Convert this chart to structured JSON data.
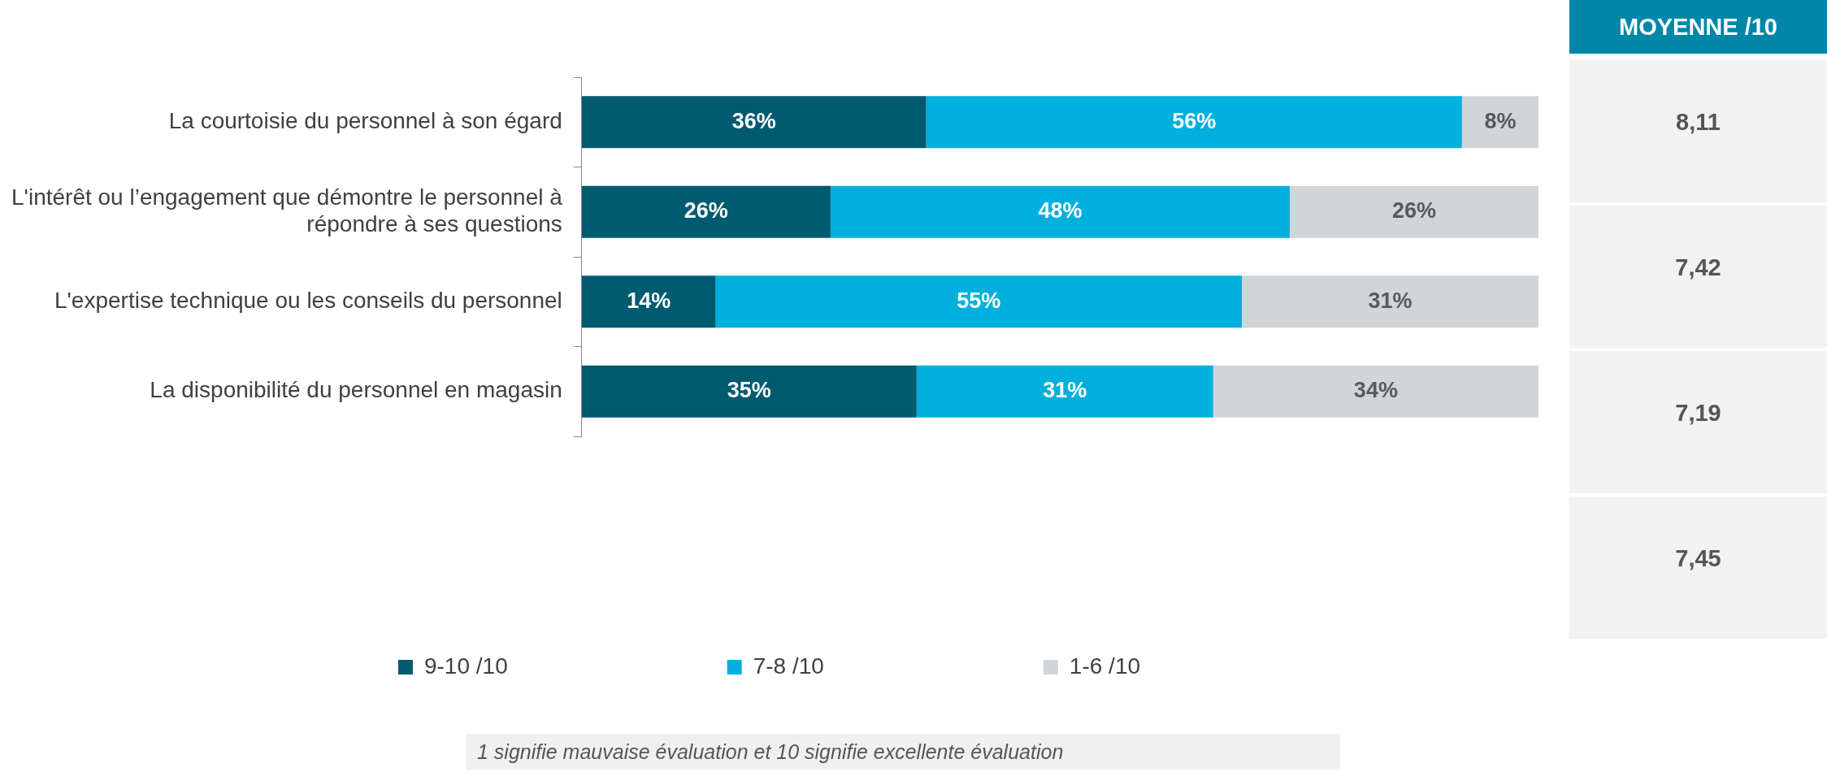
{
  "chart_data": [
    {
      "type": "bar",
      "orientation": "horizontal",
      "stacked": true,
      "legend": "bottom",
      "tick_labels": "y",
      "xlim": [
        0,
        100
      ],
      "categories": [
        "La courtoisie du personnel à son égard",
        "L'intérêt ou l’engagement que démontre le personnel à répondre à ses questions",
        "L'expertise technique ou les conseils du personnel",
        "La disponibilité du personnel en magasin"
      ],
      "series": [
        {
          "name": "9-10 /10",
          "color": "#005a70",
          "values": [
            36,
            26,
            14,
            35
          ],
          "value_labels": [
            "36%",
            "26%",
            "14%",
            "35%"
          ]
        },
        {
          "name": "7-8 /10",
          "color": "#00b0dc",
          "values": [
            56,
            48,
            55,
            31
          ],
          "value_labels": [
            "56%",
            "48%",
            "55%",
            "31%"
          ]
        },
        {
          "name": "1-6 /10",
          "color": "#d1d5d8",
          "values": [
            8,
            26,
            31,
            34
          ],
          "value_labels": [
            "8%",
            "26%",
            "31%",
            "34%"
          ]
        }
      ],
      "annotations": [
        "1 signifie mauvaise évaluation et 10 signifie excellente évaluation"
      ]
    },
    {
      "type": "other",
      "title": "MOYENNE /10",
      "annotations": [
        "8,11",
        "7,42",
        "7,19",
        "7,45"
      ]
    }
  ]
}
